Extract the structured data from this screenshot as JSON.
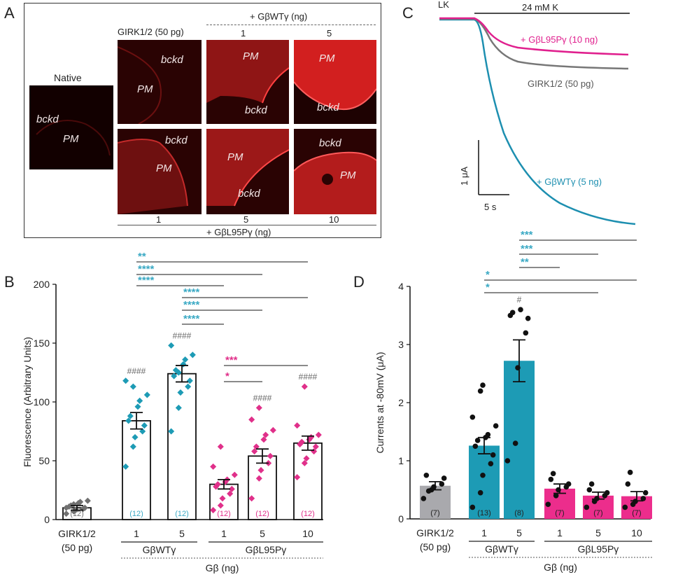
{
  "panel_a": {
    "letter": "A",
    "native_label": "Native",
    "girk_label": "GIRK1/2 (50 pg)",
    "wt_header": "+ GβWTγ (ng)",
    "wt_dose_1": "1",
    "wt_dose_5": "5",
    "l95_doses": [
      "1",
      "5",
      "10"
    ],
    "l95_footer": "+ GβL95Pγ (ng)",
    "bckd": "bckd",
    "pm": "PM"
  },
  "panel_b": {
    "letter": "B",
    "chart_data": {
      "type": "bar",
      "ylabel": "Fluorescence (Arbitrary Units)",
      "ylim": [
        0,
        200
      ],
      "yticks": [
        "0",
        "50",
        "100",
        "150",
        "200"
      ],
      "categories": [
        "GIRK1/2 (50 pg)",
        "GβWTγ 1",
        "GβWTγ 5",
        "GβL95Pγ 1",
        "GβL95Pγ 5",
        "GβL95Pγ 10"
      ],
      "xtick_labels": [
        "1",
        "5",
        "1",
        "5",
        "10"
      ],
      "control_label_1": "GIRK1/2",
      "control_label_2": "(50 pg)",
      "group_wt": "GβWTγ",
      "group_l95": "GβL95Pγ",
      "xlabel": "Gβ (ng)",
      "values": [
        10,
        84,
        124,
        30,
        54,
        65
      ],
      "errors": [
        2,
        7,
        7,
        4,
        6,
        6
      ],
      "n_labels": [
        "(12)",
        "(12)",
        "(12)",
        "(12)",
        "(12)",
        "(12)"
      ],
      "hash_labels": [
        "",
        "####",
        "####",
        "",
        "####",
        "####"
      ],
      "points": [
        [
          5,
          7,
          8,
          9,
          10,
          11,
          12,
          14,
          15,
          16,
          10,
          13
        ],
        [
          45,
          62,
          70,
          75,
          80,
          84,
          88,
          96,
          101,
          106,
          118,
          113
        ],
        [
          75,
          95,
          108,
          113,
          118,
          122,
          127,
          132,
          136,
          140,
          148,
          125
        ],
        [
          8,
          12,
          18,
          22,
          26,
          28,
          30,
          32,
          34,
          38,
          45,
          62
        ],
        [
          18,
          35,
          42,
          48,
          54,
          58,
          62,
          68,
          72,
          76,
          85,
          95
        ],
        [
          36,
          48,
          52,
          58,
          62,
          64,
          66,
          68,
          70,
          72,
          80,
          113
        ]
      ],
      "significance": [
        {
          "label": "**",
          "from": 1,
          "to": 5,
          "color": "#3aa9c4"
        },
        {
          "label": "****",
          "from": 1,
          "to": 4,
          "color": "#3aa9c4"
        },
        {
          "label": "****",
          "from": 1,
          "to": 3,
          "color": "#3aa9c4"
        },
        {
          "label": "****",
          "from": 2,
          "to": 5,
          "color": "#3aa9c4"
        },
        {
          "label": "****",
          "from": 2,
          "to": 4,
          "color": "#3aa9c4"
        },
        {
          "label": "****",
          "from": 2,
          "to": 3,
          "color": "#3aa9c4"
        },
        {
          "label": "***",
          "from": 3,
          "to": 5,
          "color": "#e0308a"
        },
        {
          "label": "*",
          "from": 3,
          "to": 4,
          "color": "#e0308a"
        }
      ],
      "point_colors": [
        "#707070",
        "#1d9bb5",
        "#1d9bb5",
        "#e0308a",
        "#e0308a",
        "#e0308a"
      ],
      "n_colors": [
        "#707070",
        "#3aa9c4",
        "#3aa9c4",
        "#e0308a",
        "#e0308a",
        "#e0308a"
      ],
      "bar_fill": "#ffffff"
    }
  },
  "panel_c": {
    "letter": "C",
    "lk": "LK",
    "k_label": "24 mM K",
    "l95_trace": "+ GβL95Pγ (10 ng)",
    "girk_trace": "GIRK1/2 (50 pg)",
    "wt_trace": "+ GβWTγ (5 ng)",
    "scale_y": "1 μA",
    "scale_x": "5 s",
    "colors": {
      "l95": "#e0208e",
      "girk": "#777777",
      "wt": "#1d8fb0"
    }
  },
  "panel_d": {
    "letter": "D",
    "chart_data": {
      "type": "bar",
      "ylabel": "Currents at -80mV (μA)",
      "ylim": [
        0,
        4
      ],
      "yticks": [
        "0",
        "1",
        "2",
        "3",
        "4"
      ],
      "categories": [
        "GIRK1/2 (50 pg)",
        "GβWTγ 1",
        "GβWTγ 5",
        "GβL95Pγ 1",
        "GβL95Pγ 5",
        "GβL95Pγ 10"
      ],
      "xtick_labels": [
        "1",
        "5",
        "1",
        "5",
        "10"
      ],
      "control_label_1": "GIRK1/2",
      "control_label_2": "(50 pg)",
      "group_wt": "GβWTγ",
      "group_l95": "GβL95Pγ",
      "xlabel": "Gβ (ng)",
      "values": [
        0.57,
        1.26,
        2.72,
        0.52,
        0.4,
        0.39
      ],
      "errors": [
        0.07,
        0.14,
        0.36,
        0.08,
        0.06,
        0.08
      ],
      "n_labels": [
        "(7)",
        "(13)",
        "(8)",
        "(7)",
        "(7)",
        "(7)"
      ],
      "hash_labels": [
        "",
        "",
        "#",
        "",
        "",
        ""
      ],
      "points": [
        [
          0.35,
          0.5,
          0.55,
          0.6,
          0.7,
          0.75,
          0.48
        ],
        [
          0.2,
          0.45,
          0.75,
          0.95,
          1.1,
          1.25,
          1.35,
          1.4,
          1.45,
          1.6,
          1.75,
          2.2,
          2.3
        ],
        [
          1.0,
          1.3,
          2.6,
          3.2,
          3.45,
          3.5,
          3.55,
          3.6
        ],
        [
          0.25,
          0.4,
          0.5,
          0.55,
          0.6,
          0.68,
          0.78
        ],
        [
          0.2,
          0.3,
          0.35,
          0.4,
          0.45,
          0.5,
          0.6
        ],
        [
          0.2,
          0.25,
          0.3,
          0.35,
          0.45,
          0.6,
          0.8
        ]
      ],
      "significance": [
        {
          "label": "***",
          "from": 2,
          "to": 5,
          "color": "#3aa9c4"
        },
        {
          "label": "***",
          "from": 2,
          "to": 4,
          "color": "#3aa9c4"
        },
        {
          "label": "**",
          "from": 2,
          "to": 3,
          "color": "#3aa9c4"
        },
        {
          "label": "*",
          "from": 1,
          "to": 5,
          "color": "#3aa9c4"
        },
        {
          "label": "*",
          "from": 1,
          "to": 4,
          "color": "#3aa9c4"
        }
      ],
      "bar_colors": [
        "#a9a9ad",
        "#1d9bb5",
        "#1d9bb5",
        "#ec2d8c",
        "#ec2d8c",
        "#ec2d8c"
      ],
      "point_color": "#111111",
      "n_color": "#222222"
    }
  }
}
